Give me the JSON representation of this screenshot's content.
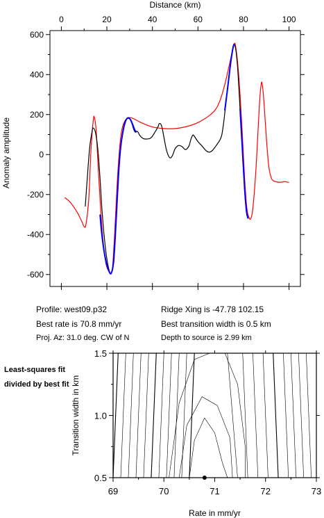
{
  "profile_info": {
    "profile": "Profile: west09.p32",
    "best_rate": "Best rate is 70.8 mm/yr",
    "proj_az": "Proj. Az: 31.0 deg. CW of N",
    "ridge_xing": "Ridge Xing is -47.78 102.15",
    "transition": "Best transition width is 0.5 km",
    "depth": "Depth to source is   2.99 km"
  },
  "contour_note": "Least-squares fit divided by best fit",
  "chart_data": [
    {
      "type": "line",
      "xlabel": "Distance (km)",
      "ylabel": "Anomaly amplitude",
      "xlim": [
        -5,
        105
      ],
      "ylim": [
        -660,
        620
      ],
      "xticks": [
        0,
        20,
        40,
        60,
        80,
        100
      ],
      "yticks": [
        -600,
        -400,
        -200,
        0,
        200,
        400,
        600
      ],
      "x_axis_position": "top",
      "series": [
        {
          "color": "#ff0000",
          "points": [
            [
              1.5,
              -215
            ],
            [
              4,
              -240
            ],
            [
              7,
              -290
            ],
            [
              9,
              -335
            ],
            [
              10,
              -360
            ],
            [
              10.8,
              -350
            ],
            [
              12,
              -230
            ],
            [
              13,
              20
            ],
            [
              14,
              170
            ],
            [
              14.5,
              186
            ],
            [
              15.3,
              120
            ],
            [
              16.5,
              -130
            ],
            [
              18,
              -390
            ],
            [
              19.5,
              -540
            ],
            [
              21,
              -588
            ],
            [
              21.8,
              -595
            ],
            [
              22.5,
              -560
            ],
            [
              23.5,
              -380
            ],
            [
              24.5,
              -150
            ],
            [
              25.5,
              20
            ],
            [
              26.5,
              120
            ],
            [
              28,
              170
            ],
            [
              30,
              185
            ],
            [
              32,
              178
            ],
            [
              35,
              160
            ],
            [
              40,
              138
            ],
            [
              45,
              130
            ],
            [
              50,
              130
            ],
            [
              55,
              140
            ],
            [
              60,
              160
            ],
            [
              65,
              195
            ],
            [
              68,
              230
            ],
            [
              70,
              280
            ],
            [
              72,
              360
            ],
            [
              74,
              460
            ],
            [
              75.5,
              540
            ],
            [
              76,
              555
            ],
            [
              76.5,
              545
            ],
            [
              77.5,
              450
            ],
            [
              78.5,
              300
            ],
            [
              79.5,
              100
            ],
            [
              80.5,
              -120
            ],
            [
              81.5,
              -270
            ],
            [
              82.5,
              -318
            ],
            [
              83.2,
              -320
            ],
            [
              84,
              -280
            ],
            [
              85,
              -150
            ],
            [
              86,
              30
            ],
            [
              87,
              250
            ],
            [
              87.8,
              355
            ],
            [
              88.3,
              345
            ],
            [
              89,
              260
            ],
            [
              90,
              90
            ],
            [
              91,
              -50
            ],
            [
              92,
              -110
            ],
            [
              93,
              -130
            ],
            [
              95,
              -138
            ],
            [
              97,
              -138
            ],
            [
              98,
              -135
            ],
            [
              100,
              -140
            ]
          ]
        },
        {
          "color": "#000000",
          "points": [
            [
              10.5,
              -260
            ],
            [
              11.5,
              -100
            ],
            [
              12.5,
              40
            ],
            [
              13.5,
              115
            ],
            [
              14,
              133
            ],
            [
              15,
              110
            ],
            [
              16,
              30
            ],
            [
              17,
              -120
            ],
            [
              18,
              -300
            ],
            [
              19.5,
              -480
            ],
            [
              21,
              -580
            ],
            [
              22,
              -590
            ],
            [
              23,
              -530
            ],
            [
              24,
              -340
            ],
            [
              25,
              -120
            ],
            [
              26,
              30
            ],
            [
              27,
              120
            ],
            [
              28,
              165
            ],
            [
              29,
              180
            ],
            [
              30,
              178
            ],
            [
              31,
              155
            ],
            [
              31.8,
              125
            ],
            [
              32.5,
              112
            ],
            [
              33.5,
              115
            ],
            [
              34.5,
              95
            ],
            [
              36,
              80
            ],
            [
              38,
              78
            ],
            [
              39.5,
              85
            ],
            [
              41,
              110
            ],
            [
              42.5,
              140
            ],
            [
              43,
              155
            ],
            [
              44,
              145
            ],
            [
              45,
              90
            ],
            [
              46,
              30
            ],
            [
              47,
              -5
            ],
            [
              48,
              -17
            ],
            [
              49,
              0
            ],
            [
              50,
              30
            ],
            [
              51.5,
              45
            ],
            [
              53,
              40
            ],
            [
              54.5,
              25
            ],
            [
              56,
              42
            ],
            [
              57,
              80
            ],
            [
              57.8,
              98
            ],
            [
              58.5,
              90
            ],
            [
              60,
              65
            ],
            [
              62,
              40
            ],
            [
              63.5,
              20
            ],
            [
              65,
              12
            ],
            [
              66.5,
              22
            ],
            [
              68,
              45
            ],
            [
              69.5,
              70
            ],
            [
              70.5,
              100
            ],
            [
              71.5,
              180
            ],
            [
              73,
              330
            ],
            [
              74.5,
              470
            ],
            [
              75.5,
              540
            ],
            [
              76,
              550
            ],
            [
              76.7,
              520
            ],
            [
              77.5,
              420
            ],
            [
              78.5,
              230
            ],
            [
              79.5,
              20
            ],
            [
              80.5,
              -180
            ],
            [
              81.3,
              -290
            ],
            [
              82,
              -320
            ]
          ]
        },
        {
          "color": "#0000ff",
          "points": [
            [
              17,
              -300
            ],
            [
              18,
              -420
            ],
            [
              19.5,
              -530
            ],
            [
              21,
              -585
            ],
            [
              22,
              -592
            ],
            [
              23,
              -530
            ],
            [
              24,
              -340
            ],
            [
              25,
              -120
            ],
            [
              26,
              30
            ],
            [
              27,
              110
            ],
            [
              28,
              160
            ],
            [
              29,
              182
            ],
            [
              30,
              180
            ],
            [
              31,
              160
            ],
            [
              32,
              130
            ],
            [
              32.5,
              118
            ],
            [
              33,
              115
            ]
          ]
        },
        {
          "color": "#0000ff",
          "points": [
            [
              71.8,
              220
            ],
            [
              73,
              330
            ],
            [
              74.5,
              470
            ],
            [
              75.5,
              540
            ],
            [
              76,
              550
            ]
          ]
        },
        {
          "color": "#0000ff",
          "points": [
            [
              78.5,
              230
            ],
            [
              79.5,
              30
            ],
            [
              80.5,
              -170
            ],
            [
              81.3,
              -280
            ],
            [
              82,
              -320
            ]
          ]
        }
      ]
    },
    {
      "type": "contour",
      "xlabel": "Rate in mm/yr",
      "ylabel": "Transition width in km",
      "xlim": [
        69,
        73
      ],
      "ylim": [
        0.5,
        1.5
      ],
      "xticks": [
        69,
        70,
        71,
        72,
        73
      ],
      "yticks": [
        0.5,
        1.0,
        1.5
      ],
      "best_fit": [
        70.8,
        0.5
      ],
      "contour_rates_at_top": [
        69.1,
        69.25,
        69.4,
        69.55,
        69.7,
        69.85,
        70.0,
        70.15,
        70.3,
        70.45,
        70.6,
        71.25,
        71.55,
        71.75,
        71.95,
        72.15,
        72.35,
        72.5,
        72.65,
        72.8,
        72.95
      ],
      "contour_rates_at_bottom": [
        69.0,
        69.15,
        69.3,
        69.45,
        69.6,
        69.75,
        69.9,
        70.05,
        70.2,
        70.35,
        70.5,
        71.45,
        71.65,
        71.85,
        72.05,
        72.25,
        72.45,
        72.6,
        72.75,
        72.9
      ],
      "inner_contours": [
        [
          [
            70.5,
            0.5
          ],
          [
            70.6,
            0.8
          ],
          [
            70.8,
            0.98
          ],
          [
            71.0,
            0.86
          ],
          [
            71.15,
            0.62
          ],
          [
            71.25,
            0.5
          ]
        ],
        [
          [
            70.3,
            0.5
          ],
          [
            70.45,
            0.92
          ],
          [
            70.75,
            1.15
          ],
          [
            71.05,
            1.08
          ],
          [
            71.3,
            0.82
          ],
          [
            71.35,
            0.5
          ]
        ],
        [
          [
            70.1,
            0.5
          ],
          [
            70.3,
            1.1
          ],
          [
            70.6,
            1.45
          ],
          [
            70.9,
            1.5
          ]
        ],
        [
          [
            71.2,
            1.5
          ],
          [
            71.45,
            1.25
          ],
          [
            71.6,
            0.75
          ],
          [
            71.6,
            0.5
          ]
        ]
      ]
    }
  ]
}
